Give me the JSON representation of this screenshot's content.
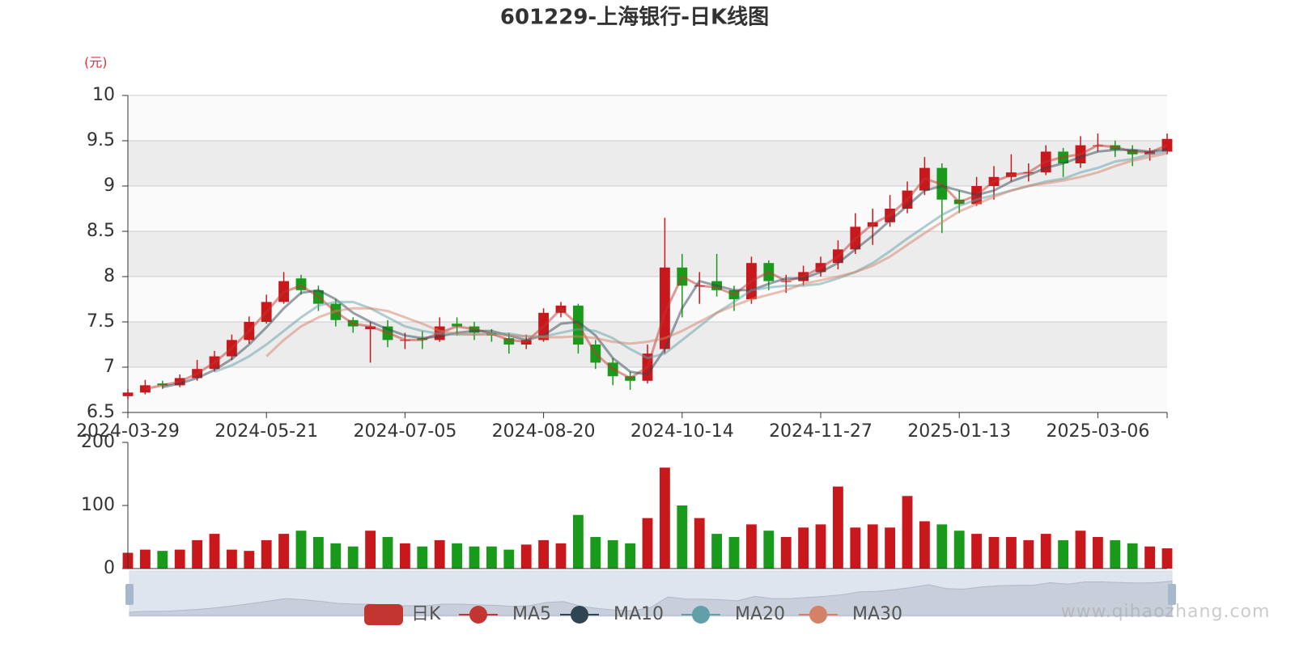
{
  "chart_data": [
    {
      "type": "candlestick",
      "title": "601229-上海银行-日K线图",
      "y_label": "(元)",
      "categories": [
        "2024-03-29",
        null,
        null,
        null,
        null,
        null,
        null,
        null,
        "2024-05-21",
        null,
        null,
        null,
        null,
        null,
        null,
        null,
        "2024-07-05",
        null,
        null,
        null,
        null,
        null,
        null,
        null,
        "2024-08-20",
        null,
        null,
        null,
        null,
        null,
        null,
        null,
        "2024-10-14",
        null,
        null,
        null,
        null,
        null,
        null,
        null,
        "2024-11-27",
        null,
        null,
        null,
        null,
        null,
        null,
        null,
        "2025-01-13",
        null,
        null,
        null,
        null,
        null,
        null,
        null,
        "2025-03-06",
        null,
        null,
        null,
        null
      ],
      "ylim": [
        6.5,
        10
      ],
      "yticks": [
        6.5,
        7,
        7.5,
        8,
        8.5,
        9,
        9.5,
        10
      ],
      "split_area": true,
      "grid": true,
      "up_color": "#c8181c",
      "down_color": "#1a9a1a",
      "series": [
        {
          "name": "日K",
          "type": "candlestick",
          "color": "#c23531",
          "values": [
            [
              6.68,
              6.72,
              6.65,
              6.76
            ],
            [
              6.72,
              6.8,
              6.7,
              6.86
            ],
            [
              6.82,
              6.8,
              6.76,
              6.85
            ],
            [
              6.8,
              6.88,
              6.78,
              6.92
            ],
            [
              6.88,
              6.98,
              6.85,
              7.08
            ],
            [
              6.98,
              7.12,
              6.95,
              7.18
            ],
            [
              7.12,
              7.3,
              7.08,
              7.36
            ],
            [
              7.3,
              7.5,
              7.26,
              7.56
            ],
            [
              7.5,
              7.72,
              7.48,
              7.8
            ],
            [
              7.72,
              7.95,
              7.7,
              8.05
            ],
            [
              7.98,
              7.85,
              7.8,
              8.02
            ],
            [
              7.85,
              7.7,
              7.62,
              7.9
            ],
            [
              7.7,
              7.52,
              7.45,
              7.75
            ],
            [
              7.52,
              7.45,
              7.38,
              7.55
            ],
            [
              7.42,
              7.45,
              7.05,
              7.5
            ],
            [
              7.45,
              7.3,
              7.22,
              7.52
            ],
            [
              7.3,
              7.3,
              7.2,
              7.38
            ],
            [
              7.32,
              7.3,
              7.2,
              7.4
            ],
            [
              7.3,
              7.45,
              7.28,
              7.55
            ],
            [
              7.48,
              7.45,
              7.35,
              7.55
            ],
            [
              7.45,
              7.38,
              7.3,
              7.5
            ],
            [
              7.38,
              7.35,
              7.28,
              7.42
            ],
            [
              7.32,
              7.25,
              7.15,
              7.38
            ],
            [
              7.25,
              7.3,
              7.2,
              7.36
            ],
            [
              7.3,
              7.6,
              7.28,
              7.65
            ],
            [
              7.6,
              7.68,
              7.55,
              7.72
            ],
            [
              7.68,
              7.25,
              7.15,
              7.7
            ],
            [
              7.25,
              7.05,
              6.98,
              7.3
            ],
            [
              7.05,
              6.9,
              6.8,
              7.1
            ],
            [
              6.9,
              6.85,
              6.75,
              6.95
            ],
            [
              6.85,
              7.15,
              6.82,
              7.25
            ],
            [
              7.2,
              8.1,
              7.15,
              8.65
            ],
            [
              8.1,
              7.9,
              7.55,
              8.25
            ],
            [
              7.9,
              7.9,
              7.7,
              8.05
            ],
            [
              7.95,
              7.85,
              7.78,
              8.25
            ],
            [
              7.85,
              7.75,
              7.62,
              7.9
            ],
            [
              7.75,
              8.15,
              7.7,
              8.22
            ],
            [
              8.15,
              7.95,
              7.85,
              8.18
            ],
            [
              7.95,
              7.95,
              7.82,
              8.02
            ],
            [
              7.95,
              8.05,
              7.9,
              8.12
            ],
            [
              8.05,
              8.15,
              8.0,
              8.22
            ],
            [
              8.15,
              8.3,
              8.08,
              8.4
            ],
            [
              8.3,
              8.55,
              8.25,
              8.7
            ],
            [
              8.55,
              8.6,
              8.35,
              8.75
            ],
            [
              8.6,
              8.75,
              8.55,
              8.9
            ],
            [
              8.75,
              8.95,
              8.7,
              9.05
            ],
            [
              8.95,
              9.2,
              8.9,
              9.32
            ],
            [
              9.2,
              8.85,
              8.48,
              9.25
            ],
            [
              8.85,
              8.8,
              8.7,
              8.95
            ],
            [
              8.8,
              9.0,
              8.78,
              9.1
            ],
            [
              9.0,
              9.1,
              8.85,
              9.22
            ],
            [
              9.1,
              9.15,
              9.05,
              9.35
            ],
            [
              9.15,
              9.15,
              9.05,
              9.25
            ],
            [
              9.15,
              9.38,
              9.12,
              9.45
            ],
            [
              9.38,
              9.25,
              9.1,
              9.42
            ],
            [
              9.25,
              9.45,
              9.2,
              9.55
            ],
            [
              9.45,
              9.45,
              9.38,
              9.58
            ],
            [
              9.45,
              9.4,
              9.32,
              9.5
            ],
            [
              9.4,
              9.35,
              9.22,
              9.45
            ],
            [
              9.35,
              9.38,
              9.28,
              9.42
            ],
            [
              9.38,
              9.52,
              9.35,
              9.58
            ]
          ]
        },
        {
          "name": "MA5",
          "type": "line",
          "color": "#c23531",
          "values": [
            null,
            6.76,
            6.8,
            6.84,
            6.93,
            7.05,
            7.21,
            7.4,
            7.61,
            7.83,
            7.9,
            7.78,
            7.61,
            7.48,
            7.45,
            7.38,
            7.3,
            7.3,
            7.38,
            7.45,
            7.42,
            7.37,
            7.3,
            7.28,
            7.45,
            7.64,
            7.47,
            7.15,
            6.98,
            6.88,
            7.0,
            7.6,
            8.0,
            7.9,
            7.88,
            7.8,
            7.95,
            8.05,
            7.95,
            8.0,
            8.1,
            8.22,
            8.42,
            8.58,
            8.68,
            8.85,
            9.08,
            9.02,
            8.82,
            8.9,
            9.05,
            9.12,
            9.15,
            9.27,
            9.32,
            9.35,
            9.45,
            9.43,
            9.38,
            9.37,
            9.45
          ]
        },
        {
          "name": "MA10",
          "type": "line",
          "color": "#2f4554",
          "values": [
            null,
            null,
            6.78,
            6.82,
            6.88,
            6.97,
            7.09,
            7.25,
            7.44,
            7.65,
            7.82,
            7.85,
            7.75,
            7.6,
            7.5,
            7.42,
            7.35,
            7.32,
            7.34,
            7.38,
            7.4,
            7.4,
            7.35,
            7.3,
            7.35,
            7.48,
            7.5,
            7.35,
            7.1,
            6.95,
            6.92,
            7.2,
            7.65,
            7.95,
            7.9,
            7.85,
            7.85,
            7.92,
            7.98,
            7.98,
            8.05,
            8.15,
            8.3,
            8.45,
            8.62,
            8.78,
            8.95,
            9.0,
            8.95,
            8.9,
            8.95,
            9.05,
            9.12,
            9.2,
            9.25,
            9.32,
            9.38,
            9.4,
            9.4,
            9.38,
            9.4
          ]
        },
        {
          "name": "MA20",
          "type": "line",
          "color": "#61a0a8",
          "values": [
            null,
            null,
            null,
            null,
            null,
            6.95,
            7.02,
            7.12,
            7.25,
            7.4,
            7.55,
            7.68,
            7.72,
            7.72,
            7.65,
            7.55,
            7.45,
            7.4,
            7.37,
            7.36,
            7.36,
            7.37,
            7.37,
            7.34,
            7.34,
            7.38,
            7.42,
            7.4,
            7.32,
            7.2,
            7.1,
            7.15,
            7.3,
            7.45,
            7.6,
            7.72,
            7.85,
            7.88,
            7.9,
            7.9,
            7.92,
            7.98,
            8.05,
            8.15,
            8.28,
            8.42,
            8.55,
            8.68,
            8.78,
            8.85,
            8.9,
            8.95,
            9.0,
            9.05,
            9.08,
            9.15,
            9.2,
            9.27,
            9.3,
            9.35,
            9.38
          ]
        },
        {
          "name": "MA30",
          "type": "line",
          "color": "#d48265",
          "values": [
            null,
            null,
            null,
            null,
            null,
            null,
            null,
            null,
            7.12,
            7.3,
            7.45,
            7.55,
            7.62,
            7.65,
            7.65,
            7.62,
            7.55,
            7.48,
            7.4,
            7.37,
            7.36,
            7.36,
            7.35,
            7.34,
            7.33,
            7.33,
            7.34,
            7.32,
            7.28,
            7.26,
            7.28,
            7.32,
            7.4,
            7.5,
            7.6,
            7.68,
            7.75,
            7.8,
            7.85,
            7.92,
            7.96,
            8.0,
            8.05,
            8.12,
            8.22,
            8.35,
            8.48,
            8.6,
            8.72,
            8.8,
            8.88,
            8.95,
            9.0,
            9.03,
            9.06,
            9.1,
            9.15,
            9.22,
            9.28,
            9.32,
            9.36
          ]
        }
      ]
    },
    {
      "type": "bar",
      "ylim": [
        0,
        200
      ],
      "yticks": [
        0,
        100,
        200
      ],
      "values": [
        25,
        30,
        28,
        30,
        45,
        55,
        30,
        28,
        45,
        55,
        60,
        50,
        40,
        35,
        60,
        50,
        40,
        35,
        45,
        40,
        35,
        35,
        30,
        38,
        45,
        40,
        85,
        50,
        45,
        40,
        80,
        160,
        100,
        80,
        55,
        50,
        70,
        60,
        50,
        65,
        70,
        130,
        65,
        70,
        65,
        115,
        75,
        70,
        60,
        55,
        50,
        50,
        45,
        55,
        45,
        60,
        50,
        45,
        40,
        35,
        32
      ]
    }
  ],
  "watermark": "www.qihaozhang.com"
}
